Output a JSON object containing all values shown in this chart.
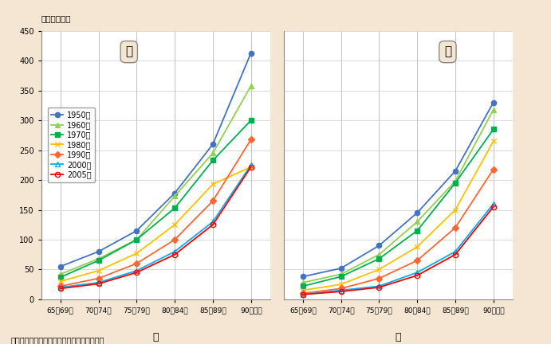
{
  "ylabel": "（人口千対）",
  "source": "資料：厚生労働省「人口動態統計」より作成",
  "bg_color": "#f5e6d3",
  "plot_bg_color": "#ffffff",
  "categories": [
    "65〜69歳",
    "70〜74歳",
    "75〜79歳",
    "80〜84歳",
    "85〜89歳",
    "90歳以上"
  ],
  "ylim": [
    0,
    450
  ],
  "yticks": [
    0,
    50,
    100,
    150,
    200,
    250,
    300,
    350,
    400,
    450
  ],
  "series": [
    {
      "label": "1950年",
      "color": "#4472c4",
      "marker": "o",
      "fillstyle": "full",
      "linestyle": "-",
      "male": [
        55,
        80,
        115,
        178,
        260,
        413
      ],
      "female": [
        38,
        52,
        90,
        145,
        215,
        330
      ]
    },
    {
      "label": "1960年",
      "color": "#92d050",
      "marker": "^",
      "fillstyle": "full",
      "linestyle": "-",
      "male": [
        42,
        68,
        100,
        173,
        245,
        358
      ],
      "female": [
        28,
        42,
        75,
        130,
        198,
        318
      ]
    },
    {
      "label": "1970年",
      "color": "#00b050",
      "marker": "s",
      "fillstyle": "full",
      "linestyle": "-",
      "male": [
        37,
        65,
        100,
        153,
        233,
        300
      ],
      "female": [
        22,
        38,
        68,
        115,
        195,
        285
      ]
    },
    {
      "label": "1980年",
      "color": "#ffc000",
      "marker": "x",
      "fillstyle": "full",
      "linestyle": "-",
      "male": [
        30,
        48,
        77,
        125,
        193,
        222
      ],
      "female": [
        15,
        25,
        50,
        88,
        150,
        265
      ]
    },
    {
      "label": "1990年",
      "color": "#ff6633",
      "marker": "D",
      "fillstyle": "full",
      "linestyle": "-",
      "male": [
        22,
        35,
        60,
        100,
        165,
        268
      ],
      "female": [
        10,
        18,
        35,
        65,
        120,
        218
      ]
    },
    {
      "label": "2000年",
      "color": "#00b0f0",
      "marker": "^",
      "fillstyle": "none",
      "linestyle": "-",
      "male": [
        20,
        28,
        48,
        80,
        130,
        225
      ],
      "female": [
        8,
        15,
        22,
        45,
        80,
        160
      ]
    },
    {
      "label": "2005年",
      "color": "#ff0000",
      "marker": "o",
      "fillstyle": "none",
      "linestyle": "-",
      "male": [
        18,
        26,
        45,
        75,
        125,
        222
      ],
      "female": [
        8,
        13,
        20,
        40,
        75,
        155
      ]
    }
  ]
}
